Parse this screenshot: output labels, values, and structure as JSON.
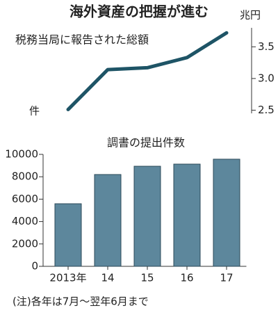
{
  "title": "海外資産の把握が進む",
  "note": "(注)各年は7月～翌年6月まで",
  "chart_data": [
    {
      "type": "line",
      "subtitle": "税務当局に報告された総額",
      "unit": "兆円",
      "values": [
        2.51,
        3.14,
        3.17,
        3.33,
        3.72
      ],
      "color": "#1e5466",
      "y2lim": [
        2.45,
        3.8
      ],
      "y2ticks": [
        2.5,
        {
          "value": 3,
          "label": "3.0"
        },
        3.5
      ]
    },
    {
      "type": "bar",
      "subtitle": "調書の提出件数",
      "unit": "件",
      "categories": [
        "2013年",
        "14",
        "15",
        "16",
        "17"
      ],
      "values": [
        5590,
        8200,
        8940,
        9130,
        9570
      ],
      "color": "#5d879c",
      "ylim": [
        0,
        10000
      ],
      "yticks": [
        0,
        2000,
        4000,
        6000,
        8000,
        10000
      ]
    }
  ]
}
